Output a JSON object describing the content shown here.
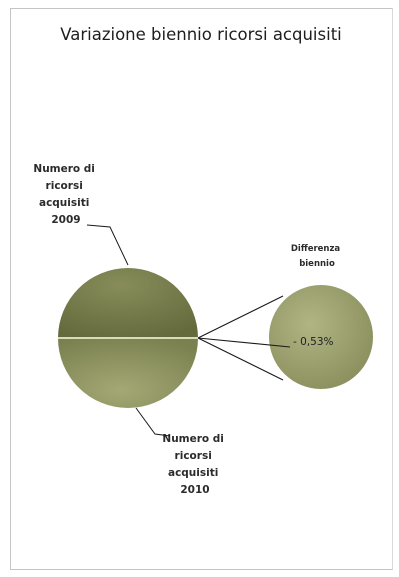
{
  "chart_data": {
    "type": "pie",
    "subtype": "pie-of-pie",
    "title": "Variazione biennio ricorsi acquisiti",
    "slices": [
      {
        "label_lines": [
          "Numero di",
          "ricorsi",
          "acquisiti",
          "2009"
        ],
        "color": "#757a4a"
      },
      {
        "label_lines": [
          "Numero di",
          "ricorsi",
          "acquisiti",
          "2010"
        ],
        "color": "#8f9460"
      }
    ],
    "secondary": {
      "label_lines": [
        "Differenza",
        "biennio"
      ],
      "value_label": "- 0,53%",
      "value": -0.53,
      "color": "#9aa06e"
    },
    "legend": "none",
    "grid": false
  }
}
